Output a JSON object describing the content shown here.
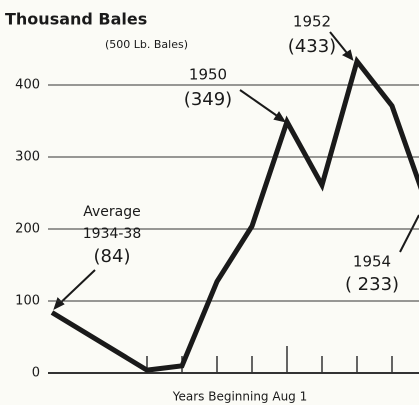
{
  "chart_data": {
    "type": "line",
    "title": "Thousand Bales",
    "subtitle": "(500 Lb. Bales)",
    "x_label": "Years Beginning Aug 1",
    "categories": [
      null,
      null,
      null,
      null,
      null,
      null,
      null,
      null,
      null,
      null
    ],
    "series": [
      {
        "name": null,
        "color": "#1a1a1a",
        "values": [
          84,
          4,
          10,
          127,
          204,
          349,
          261,
          433,
          371,
          233
        ],
        "value_labels": [
          "(84)",
          null,
          null,
          null,
          null,
          "(349)",
          null,
          "(433)",
          null,
          "( 233)"
        ]
      }
    ],
    "annotations": [
      "Average",
      "1934-38",
      "1950",
      "1952",
      "1954"
    ],
    "ylim": [
      0,
      460
    ],
    "yticks": [
      0,
      100,
      200,
      300,
      400
    ],
    "grid": true
  }
}
